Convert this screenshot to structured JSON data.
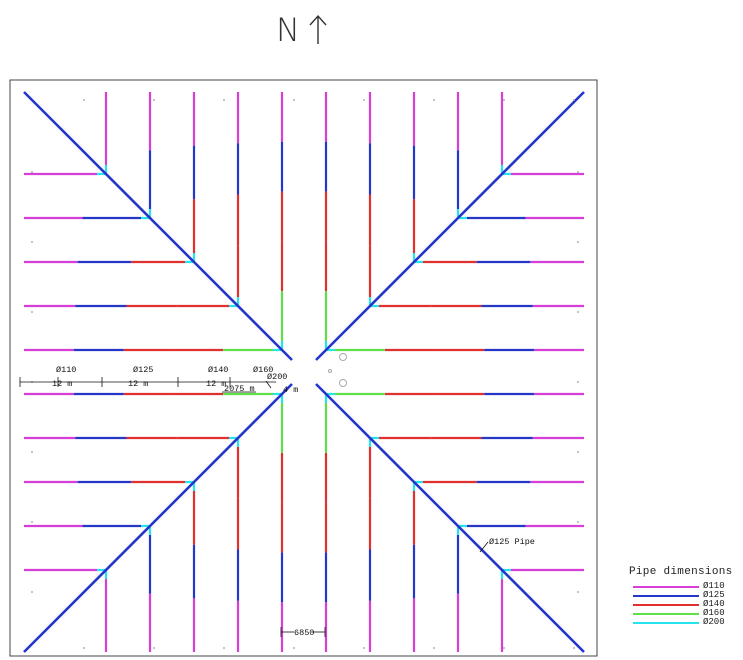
{
  "north": {
    "label": "N"
  },
  "colors": {
    "d110": "#d63ed6",
    "d125": "#2437c8",
    "d140": "#e03030",
    "d160": "#5fe04a",
    "d200": "#26e3ee"
  },
  "dimensions": {
    "d110_label": "Ø110",
    "d125_label": "Ø125",
    "d140_label": "Ø140",
    "d160_label": "Ø160",
    "d200_label": "Ø200",
    "len_12a": "12 m",
    "len_12b": "12 m",
    "len_12c": "12 m",
    "len_2075": "2075 m",
    "len_4": "4 m",
    "pipe_note": "Ø125 Pipe",
    "width_6850": "6850"
  },
  "legend": {
    "title": "Pipe dimensions",
    "items": [
      {
        "label": "Ø110",
        "color": "#d63ed6"
      },
      {
        "label": "Ø125",
        "color": "#2437c8"
      },
      {
        "label": "Ø140",
        "color": "#e03030"
      },
      {
        "label": "Ø160",
        "color": "#5fe04a"
      },
      {
        "label": "Ø200",
        "color": "#26e3ee"
      }
    ]
  }
}
